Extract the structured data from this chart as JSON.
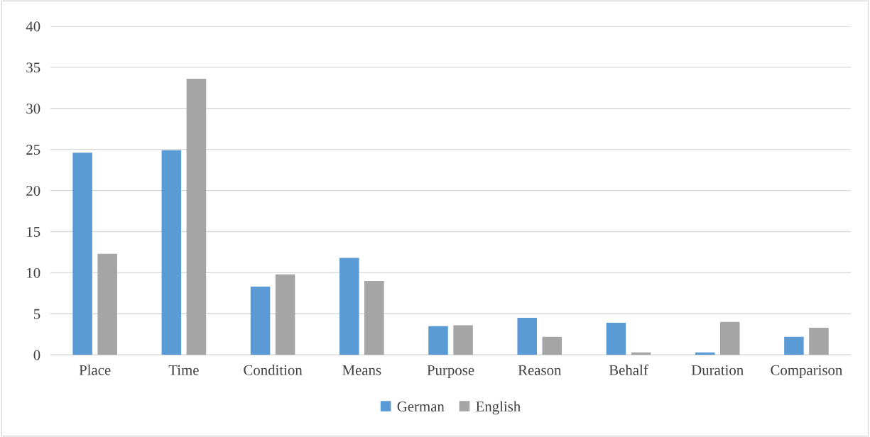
{
  "chart_data": {
    "type": "bar",
    "categories": [
      "Place",
      "Time",
      "Condition",
      "Means",
      "Purpose",
      "Reason",
      "Behalf",
      "Duration",
      "Comparison"
    ],
    "series": [
      {
        "name": "German",
        "color": "#5b9bd5",
        "values": [
          24.6,
          24.9,
          8.3,
          11.8,
          3.5,
          4.5,
          3.9,
          0.3,
          2.2
        ]
      },
      {
        "name": "English",
        "color": "#a5a5a5",
        "values": [
          12.3,
          33.6,
          9.8,
          9.0,
          3.6,
          2.2,
          0.3,
          4.0,
          3.3
        ]
      }
    ],
    "ylim": [
      0,
      40
    ],
    "yticks": [
      0,
      5,
      10,
      15,
      20,
      25,
      30,
      35,
      40
    ],
    "grid": "y",
    "legend": "bottom"
  }
}
